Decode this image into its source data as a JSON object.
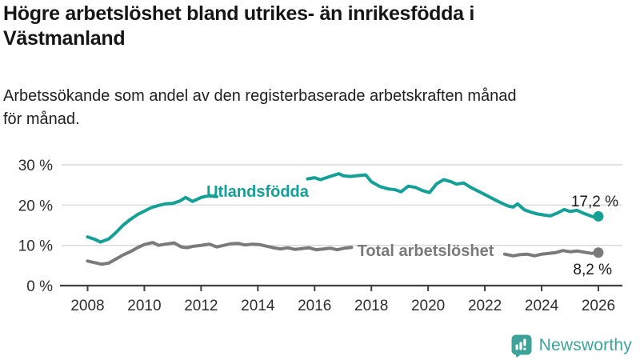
{
  "header": {
    "title": "Högre arbetslöshet bland utrikes- än inrikesfödda i Västmanland",
    "subtitle": "Arbetssökande som andel av den registerbaserade arbetskraften månad för månad."
  },
  "footer": {
    "brand": "Newsworthy",
    "logo_icon": "newsworthy-speech-bubble-bar-chart-icon"
  },
  "colors": {
    "series_teal": "#14a096",
    "series_gray": "#7a7a7a",
    "grid": "#d9d9d9",
    "axis": "#3f3f3f",
    "tick_text": "#2e2e2e",
    "value_text": "#1a1a1a",
    "brand_teal": "#3da39a"
  },
  "chart_data": {
    "type": "line",
    "title": "Högre arbetslöshet bland utrikes- än inrikesfödda i Västmanland",
    "xlabel": "",
    "ylabel": "Arbetssökande som andel av den registerbaserade arbetskraften",
    "x_axis": {
      "range": [
        2007.08,
        2026.85
      ],
      "ticks": [
        2008,
        2010,
        2012,
        2014,
        2016,
        2018,
        2020,
        2022,
        2024,
        2026
      ],
      "tick_labels": [
        "2008",
        "2010",
        "2012",
        "2014",
        "2016",
        "2018",
        "2020",
        "2022",
        "2024",
        "2026"
      ]
    },
    "y_axis": {
      "range": [
        0,
        31
      ],
      "ticks": [
        0,
        10,
        20,
        30
      ],
      "tick_labels": [
        "0 %",
        "10 %",
        "20 %",
        "30 %"
      ],
      "unit": "%"
    },
    "grid": "horizontal",
    "legend_position": "inline-labels",
    "series": [
      {
        "id": "utlandsfodda",
        "name": "Utlandsfödda",
        "color": "#14a096",
        "end_value": 17.2,
        "end_label": "17,2 %",
        "segments": [
          [
            [
              2008.0,
              12.1
            ],
            [
              2008.25,
              11.5
            ],
            [
              2008.45,
              10.8
            ],
            [
              2008.75,
              11.6
            ],
            [
              2009.0,
              13.2
            ],
            [
              2009.25,
              15.0
            ],
            [
              2009.5,
              16.4
            ],
            [
              2009.75,
              17.6
            ],
            [
              2010.0,
              18.5
            ],
            [
              2010.25,
              19.4
            ],
            [
              2010.5,
              19.9
            ],
            [
              2010.75,
              20.3
            ],
            [
              2011.0,
              20.4
            ],
            [
              2011.25,
              21.0
            ],
            [
              2011.45,
              21.9
            ],
            [
              2011.7,
              20.9
            ],
            [
              2012.0,
              21.9
            ],
            [
              2012.25,
              22.3
            ],
            [
              2012.55,
              22.1
            ]
          ],
          [
            [
              2015.75,
              26.5
            ],
            [
              2016.0,
              26.8
            ],
            [
              2016.2,
              26.3
            ],
            [
              2016.5,
              27.0
            ],
            [
              2016.85,
              27.8
            ],
            [
              2017.0,
              27.3
            ],
            [
              2017.25,
              27.1
            ],
            [
              2017.5,
              27.3
            ],
            [
              2017.8,
              27.5
            ],
            [
              2018.0,
              25.8
            ],
            [
              2018.3,
              24.6
            ],
            [
              2018.6,
              24.0
            ],
            [
              2018.85,
              23.8
            ],
            [
              2019.05,
              23.3
            ],
            [
              2019.3,
              24.7
            ],
            [
              2019.55,
              24.4
            ],
            [
              2019.8,
              23.6
            ],
            [
              2020.05,
              23.1
            ],
            [
              2020.3,
              25.3
            ],
            [
              2020.55,
              26.3
            ],
            [
              2020.8,
              25.8
            ],
            [
              2021.0,
              25.2
            ],
            [
              2021.25,
              25.5
            ],
            [
              2021.5,
              24.4
            ],
            [
              2021.75,
              23.5
            ],
            [
              2022.0,
              22.6
            ],
            [
              2022.25,
              21.7
            ],
            [
              2022.5,
              20.8
            ],
            [
              2022.8,
              19.8
            ],
            [
              2023.0,
              19.5
            ],
            [
              2023.15,
              20.3
            ],
            [
              2023.4,
              18.8
            ],
            [
              2023.6,
              18.3
            ],
            [
              2023.85,
              17.8
            ],
            [
              2024.1,
              17.5
            ],
            [
              2024.3,
              17.3
            ],
            [
              2024.55,
              18.0
            ],
            [
              2024.8,
              18.9
            ],
            [
              2025.0,
              18.4
            ],
            [
              2025.25,
              18.7
            ],
            [
              2025.5,
              17.9
            ],
            [
              2025.8,
              17.1
            ],
            [
              2026.0,
              17.2
            ]
          ]
        ]
      },
      {
        "id": "total",
        "name": "Total arbetslöshet",
        "color": "#7a7a7a",
        "end_value": 8.2,
        "end_label": "8,2 %",
        "segments": [
          [
            [
              2008.0,
              6.1
            ],
            [
              2008.25,
              5.7
            ],
            [
              2008.5,
              5.3
            ],
            [
              2008.75,
              5.6
            ],
            [
              2009.0,
              6.6
            ],
            [
              2009.25,
              7.6
            ],
            [
              2009.5,
              8.4
            ],
            [
              2009.75,
              9.4
            ],
            [
              2010.0,
              10.2
            ],
            [
              2010.3,
              10.7
            ],
            [
              2010.5,
              10.0
            ],
            [
              2010.75,
              10.3
            ],
            [
              2011.05,
              10.6
            ],
            [
              2011.3,
              9.6
            ],
            [
              2011.5,
              9.4
            ],
            [
              2011.75,
              9.8
            ],
            [
              2012.0,
              10.0
            ],
            [
              2012.3,
              10.3
            ],
            [
              2012.55,
              9.6
            ],
            [
              2012.8,
              10.0
            ],
            [
              2013.05,
              10.4
            ],
            [
              2013.3,
              10.5
            ],
            [
              2013.55,
              10.1
            ],
            [
              2013.8,
              10.3
            ],
            [
              2014.05,
              10.2
            ],
            [
              2014.3,
              9.8
            ],
            [
              2014.55,
              9.4
            ],
            [
              2014.8,
              9.1
            ],
            [
              2015.05,
              9.4
            ],
            [
              2015.3,
              9.0
            ],
            [
              2015.55,
              9.2
            ],
            [
              2015.8,
              9.4
            ],
            [
              2016.05,
              8.9
            ],
            [
              2016.3,
              9.1
            ],
            [
              2016.55,
              9.3
            ],
            [
              2016.8,
              8.9
            ],
            [
              2017.05,
              9.3
            ],
            [
              2017.3,
              9.5
            ]
          ],
          [
            [
              2022.7,
              7.8
            ],
            [
              2023.0,
              7.4
            ],
            [
              2023.25,
              7.7
            ],
            [
              2023.5,
              7.8
            ],
            [
              2023.75,
              7.4
            ],
            [
              2024.0,
              7.8
            ],
            [
              2024.25,
              8.0
            ],
            [
              2024.5,
              8.2
            ],
            [
              2024.75,
              8.7
            ],
            [
              2025.0,
              8.4
            ],
            [
              2025.25,
              8.6
            ],
            [
              2025.5,
              8.3
            ],
            [
              2025.75,
              8.0
            ],
            [
              2026.0,
              8.2
            ]
          ]
        ]
      }
    ]
  }
}
